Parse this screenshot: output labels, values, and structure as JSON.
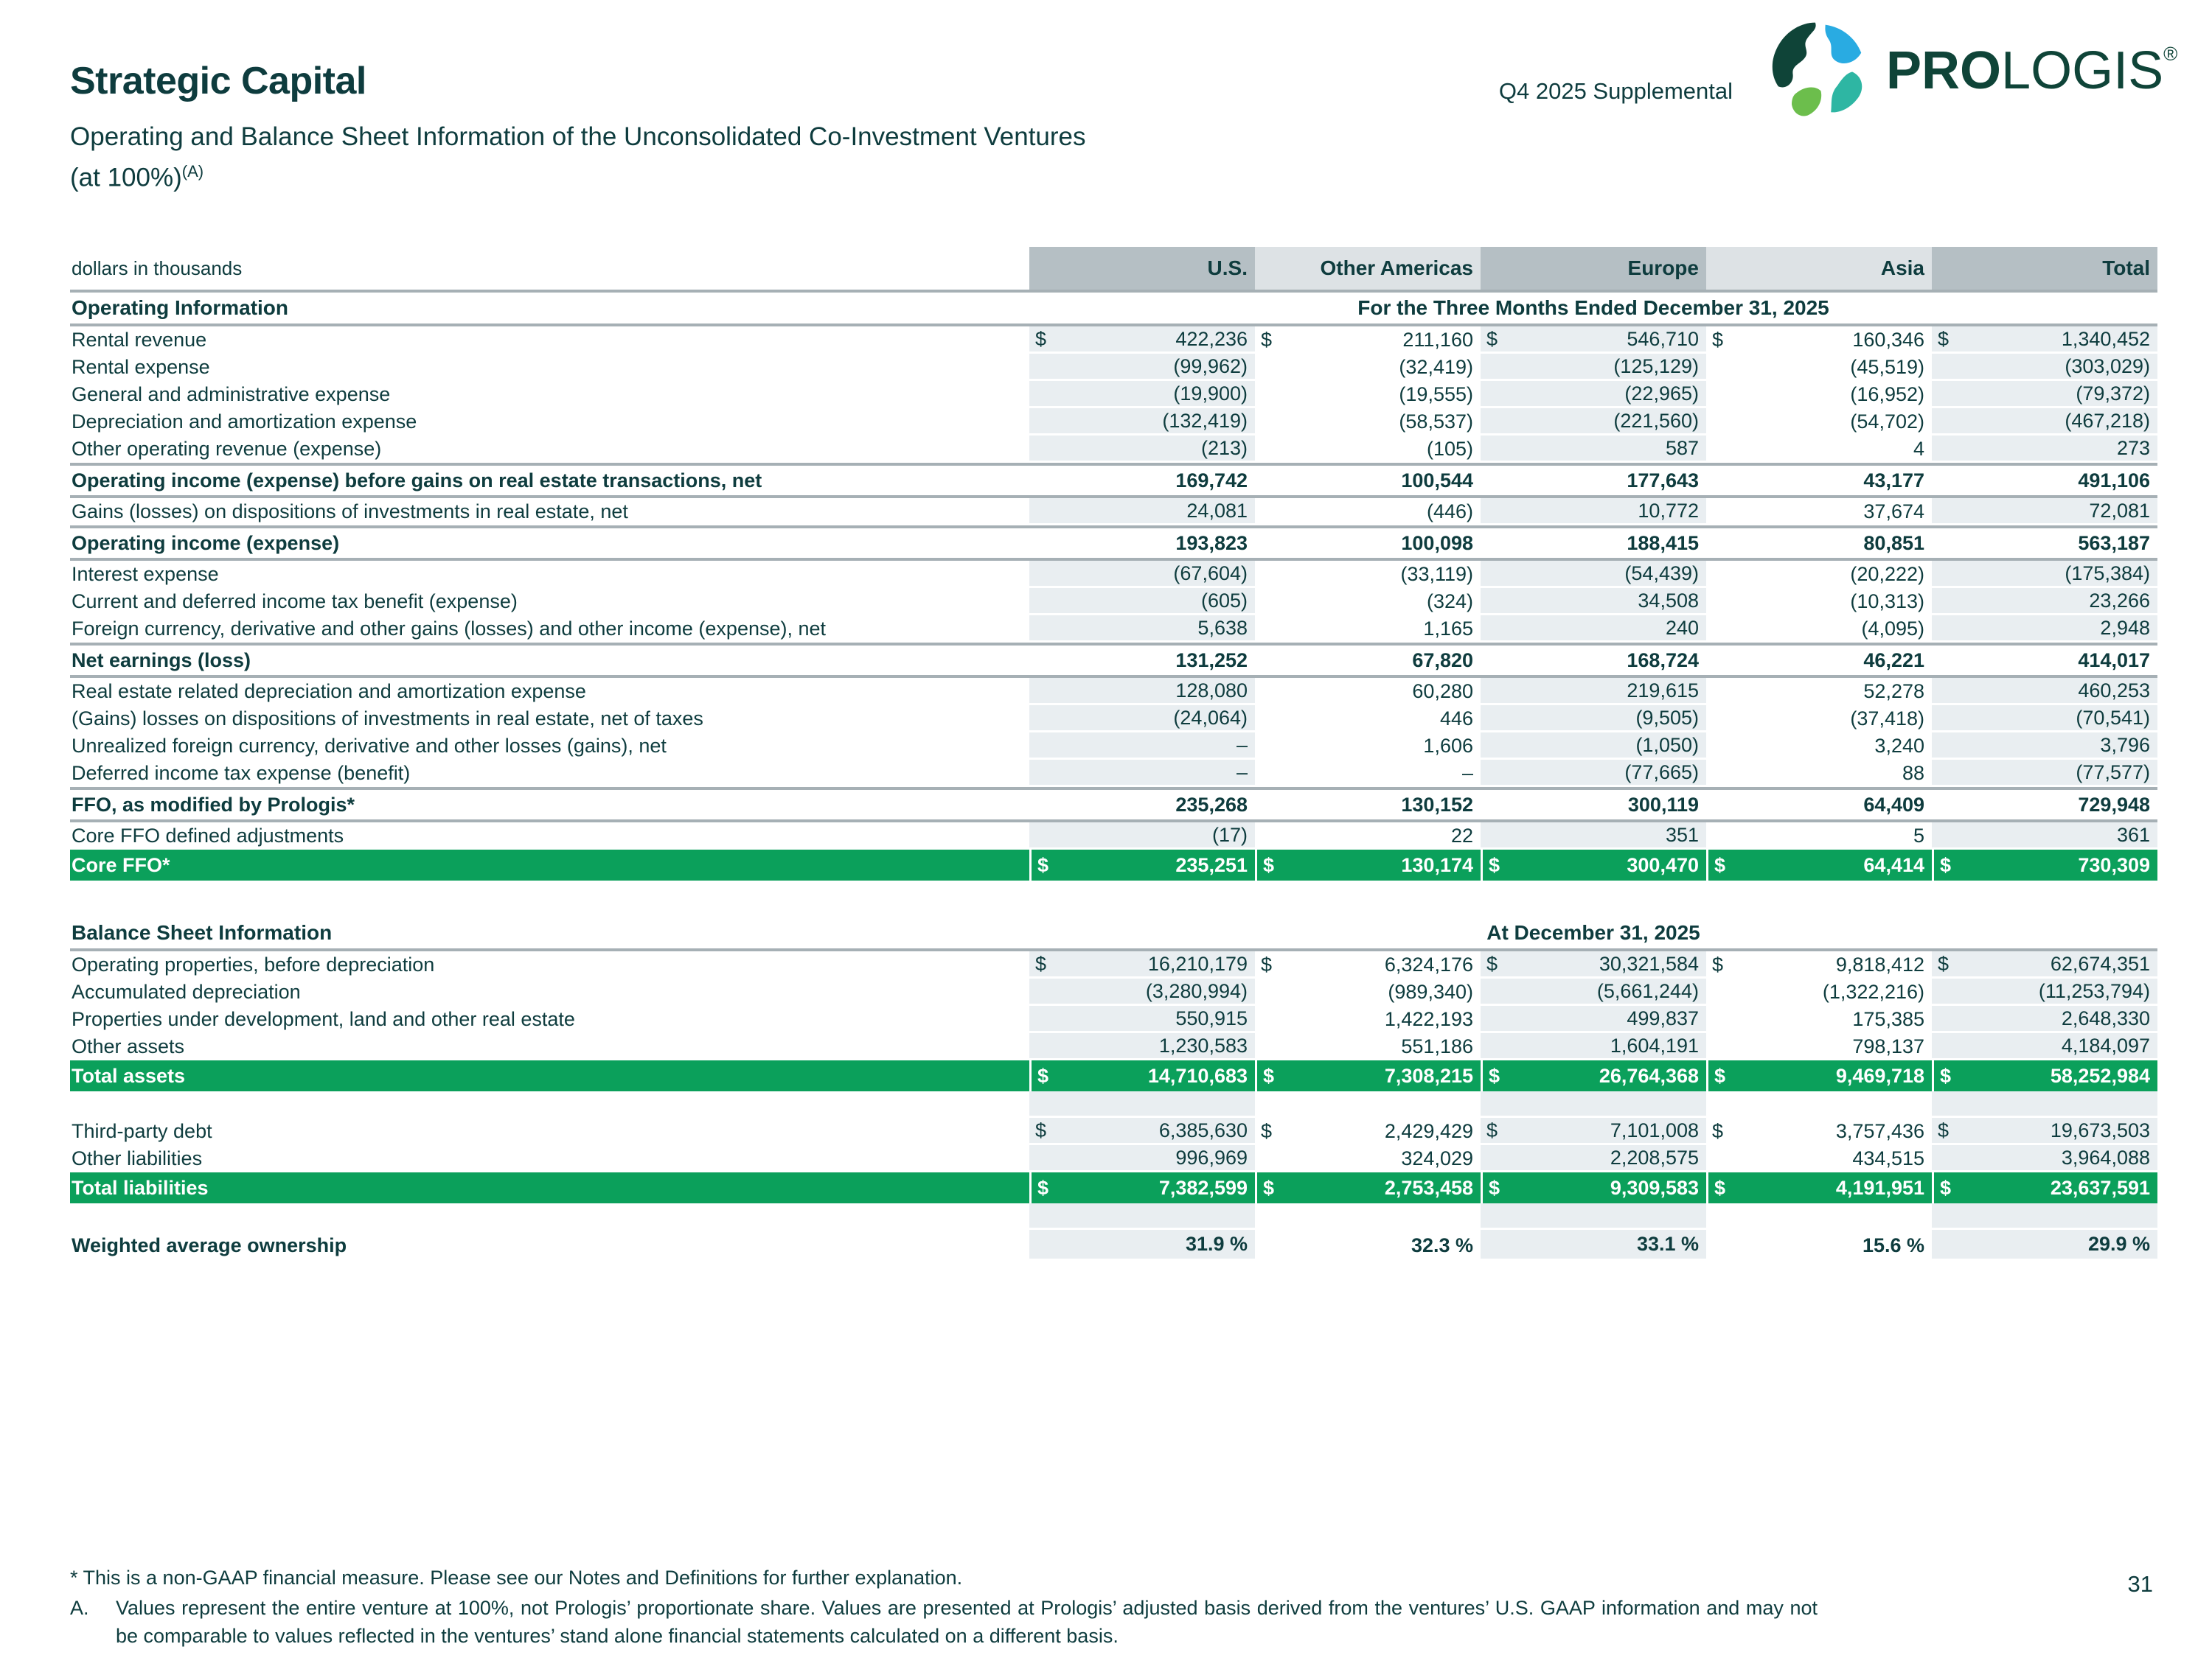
{
  "header": {
    "title": "Strategic Capital",
    "subtitle_line1": "Operating and Balance Sheet Information of the Unconsolidated Co-Investment Ventures",
    "subtitle_line2": "(at 100%)",
    "subtitle_footnote_ref": "(A)",
    "supplemental": "Q4 2025 Supplemental",
    "logo_text_bold": "PRO",
    "logo_text_regular": "LOGIS",
    "logo_registered_mark": "®"
  },
  "colors": {
    "dark_teal_text": "#0e3c3e",
    "logo_dark_green": "#0f4438",
    "logo_blue": "#29abe2",
    "logo_leaf_green": "#6cbe4c",
    "logo_teal": "#2eb6a3",
    "total_row_green": "#0ba05b",
    "column_band": "#e9eef1",
    "header_band_dark": "#b5bfc4",
    "header_band_light": "#dde2e5",
    "rule_gray": "#a6b0b5"
  },
  "table": {
    "unit_label": "dollars in thousands",
    "currency": "$",
    "columns": [
      "U.S.",
      "Other Americas",
      "Europe",
      "Asia",
      "Total"
    ],
    "sections": [
      {
        "title": "Operating Information",
        "period": "For the Three Months Ended December 31, 2025",
        "rows": [
          {
            "label": "Rental revenue",
            "type": "data",
            "dollar": true,
            "values": [
              "422,236",
              "211,160",
              "546,710",
              "160,346",
              "1,340,452"
            ]
          },
          {
            "label": "Rental expense",
            "type": "data",
            "dollar": false,
            "values": [
              "(99,962)",
              "(32,419)",
              "(125,129)",
              "(45,519)",
              "(303,029)"
            ]
          },
          {
            "label": "General and administrative expense",
            "type": "data",
            "dollar": false,
            "values": [
              "(19,900)",
              "(19,555)",
              "(22,965)",
              "(16,952)",
              "(79,372)"
            ]
          },
          {
            "label": "Depreciation and amortization expense",
            "type": "data",
            "dollar": false,
            "values": [
              "(132,419)",
              "(58,537)",
              "(221,560)",
              "(54,702)",
              "(467,218)"
            ]
          },
          {
            "label": "Other operating revenue (expense)",
            "type": "data",
            "dollar": false,
            "values": [
              "(213)",
              "(105)",
              "587",
              "4",
              "273"
            ]
          },
          {
            "label": "Operating income (expense) before gains on real estate transactions, net",
            "type": "total",
            "dollar": false,
            "values": [
              "169,742",
              "100,544",
              "177,643",
              "43,177",
              "491,106"
            ]
          },
          {
            "label": "Gains (losses) on dispositions of investments in real estate, net",
            "type": "data",
            "dollar": false,
            "values": [
              "24,081",
              "(446)",
              "10,772",
              "37,674",
              "72,081"
            ]
          },
          {
            "label": "Operating income (expense)",
            "type": "total",
            "dollar": false,
            "values": [
              "193,823",
              "100,098",
              "188,415",
              "80,851",
              "563,187"
            ]
          },
          {
            "label": "Interest expense",
            "type": "data",
            "dollar": false,
            "values": [
              "(67,604)",
              "(33,119)",
              "(54,439)",
              "(20,222)",
              "(175,384)"
            ]
          },
          {
            "label": "Current and deferred income tax benefit (expense)",
            "type": "data",
            "dollar": false,
            "values": [
              "(605)",
              "(324)",
              "34,508",
              "(10,313)",
              "23,266"
            ]
          },
          {
            "label": "Foreign currency, derivative and other gains (losses) and other income (expense), net",
            "type": "data",
            "dollar": false,
            "values": [
              "5,638",
              "1,165",
              "240",
              "(4,095)",
              "2,948"
            ]
          },
          {
            "label": "Net earnings (loss)",
            "type": "total",
            "dollar": false,
            "values": [
              "131,252",
              "67,820",
              "168,724",
              "46,221",
              "414,017"
            ]
          },
          {
            "label": "Real estate related depreciation and amortization expense",
            "type": "data",
            "dollar": false,
            "values": [
              "128,080",
              "60,280",
              "219,615",
              "52,278",
              "460,253"
            ]
          },
          {
            "label": "(Gains) losses on dispositions of investments in real estate, net of taxes",
            "type": "data",
            "dollar": false,
            "values": [
              "(24,064)",
              "446",
              "(9,505)",
              "(37,418)",
              "(70,541)"
            ]
          },
          {
            "label": "Unrealized foreign currency, derivative and other losses (gains), net",
            "type": "data",
            "dollar": false,
            "values": [
              "–",
              "1,606",
              "(1,050)",
              "3,240",
              "3,796"
            ]
          },
          {
            "label": "Deferred income tax expense (benefit)",
            "type": "data",
            "dollar": false,
            "values": [
              "–",
              "–",
              "(77,665)",
              "88",
              "(77,577)"
            ]
          },
          {
            "label": "FFO, as modified by Prologis*",
            "type": "total",
            "dollar": false,
            "values": [
              "235,268",
              "130,152",
              "300,119",
              "64,409",
              "729,948"
            ]
          },
          {
            "label": "Core FFO defined adjustments",
            "type": "data",
            "dollar": false,
            "values": [
              "(17)",
              "22",
              "351",
              "5",
              "361"
            ]
          },
          {
            "label": "Core FFO*",
            "type": "green",
            "dollar": true,
            "values": [
              "235,251",
              "130,174",
              "300,470",
              "64,414",
              "730,309"
            ]
          }
        ]
      },
      {
        "title": "Balance Sheet Information",
        "period": "At December 31, 2025",
        "rows": [
          {
            "label": "Operating properties, before depreciation",
            "type": "data",
            "dollar": true,
            "values": [
              "16,210,179",
              "6,324,176",
              "30,321,584",
              "9,818,412",
              "62,674,351"
            ]
          },
          {
            "label": "Accumulated depreciation",
            "type": "data",
            "dollar": false,
            "values": [
              "(3,280,994)",
              "(989,340)",
              "(5,661,244)",
              "(1,322,216)",
              "(11,253,794)"
            ]
          },
          {
            "label": "Properties under development, land and other real estate",
            "type": "data",
            "dollar": false,
            "values": [
              "550,915",
              "1,422,193",
              "499,837",
              "175,385",
              "2,648,330"
            ]
          },
          {
            "label": "Other assets",
            "type": "data",
            "dollar": false,
            "values": [
              "1,230,583",
              "551,186",
              "1,604,191",
              "798,137",
              "4,184,097"
            ]
          },
          {
            "label": "Total assets",
            "type": "green",
            "dollar": true,
            "values": [
              "14,710,683",
              "7,308,215",
              "26,764,368",
              "9,469,718",
              "58,252,984"
            ]
          },
          {
            "label": "",
            "type": "gap",
            "dollar": false,
            "values": [
              "",
              "",
              "",
              "",
              ""
            ]
          },
          {
            "label": "Third-party debt",
            "type": "data",
            "dollar": true,
            "values": [
              "6,385,630",
              "2,429,429",
              "7,101,008",
              "3,757,436",
              "19,673,503"
            ]
          },
          {
            "label": "Other liabilities",
            "type": "data",
            "dollar": false,
            "values": [
              "996,969",
              "324,029",
              "2,208,575",
              "434,515",
              "3,964,088"
            ]
          },
          {
            "label": "Total liabilities",
            "type": "green",
            "dollar": true,
            "values": [
              "7,382,599",
              "2,753,458",
              "9,309,583",
              "4,191,951",
              "23,637,591"
            ]
          },
          {
            "label": "",
            "type": "gap",
            "dollar": false,
            "values": [
              "",
              "",
              "",
              "",
              ""
            ]
          },
          {
            "label": "Weighted average ownership",
            "type": "pct",
            "dollar": false,
            "values": [
              "31.9 %",
              "32.3 %",
              "33.1 %",
              "15.6 %",
              "29.9 %"
            ]
          }
        ]
      }
    ]
  },
  "footnotes": {
    "star": "* This is a non-GAAP financial measure. Please see our Notes and Definitions for further explanation.",
    "a_marker": "A.",
    "a_text": "Values represent the entire venture at 100%, not Prologis’ proportionate share. Values are presented at Prologis’ adjusted basis derived from the ventures’ U.S. GAAP information and may not be comparable to values reflected in the ventures’ stand alone financial statements calculated on a different basis."
  },
  "page_number": "31"
}
